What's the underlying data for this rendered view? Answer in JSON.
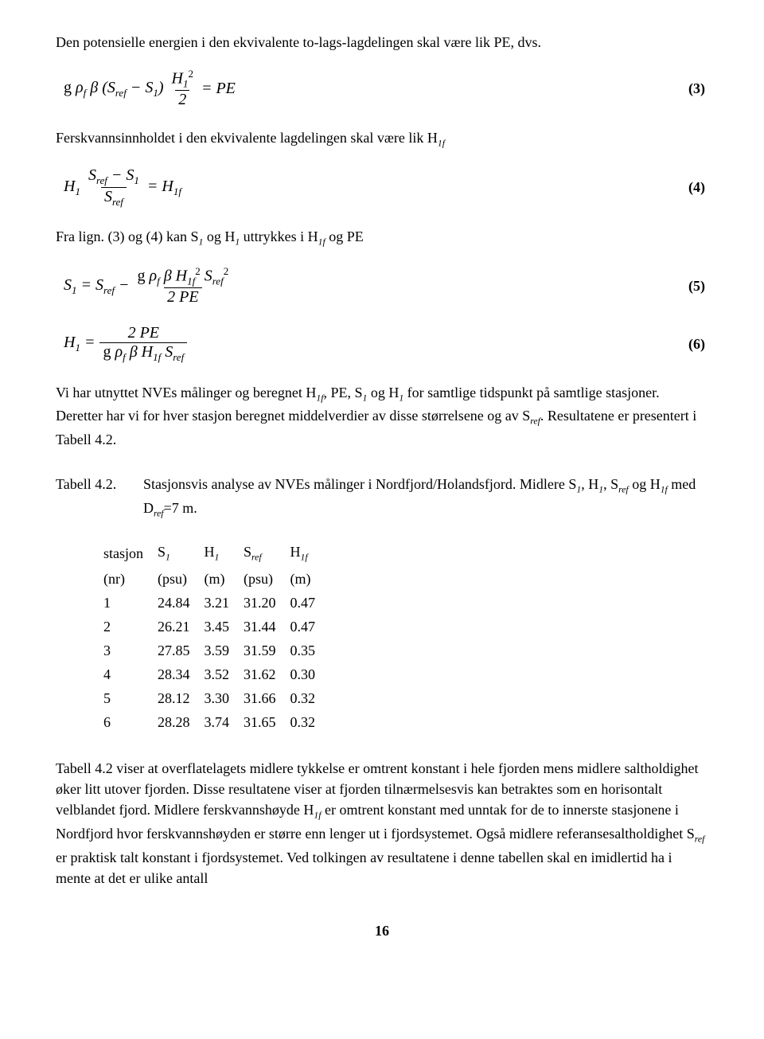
{
  "p1": "Den potensielle energien i den ekvivalente to-lags-lagdelingen skal være lik PE, dvs.",
  "eq3": {
    "lhs_pre": "g ρ",
    "lhs_sub1": "f",
    "lhs_beta": "β (S",
    "lhs_sub_ref": "ref",
    "lhs_minus": " − S",
    "lhs_sub_one": "1",
    "lhs_close": ")",
    "frac_num": "H₁²",
    "frac_den": "2",
    "eq": " = PE",
    "num": "(3)"
  },
  "p2": "Ferskvannsinnholdet i den ekvivalente lagdelingen skal være lik H",
  "p2_sub": "1f",
  "eq4": {
    "h1": "H",
    "h1_sub": "1",
    "frac_num_a": "S",
    "frac_num_a_sub": "ref",
    "frac_num_minus": " − S",
    "frac_num_b_sub": "1",
    "frac_den": "S",
    "frac_den_sub": "ref",
    "eq": " = H",
    "rhs_sub": "1f",
    "num": "(4)"
  },
  "p3_a": "Fra lign. (3) og (4) kan S",
  "p3_s1": "1",
  "p3_b": " og H",
  "p3_h1": "1",
  "p3_c": " uttrykkes i H",
  "p3_h1f": "1f",
  "p3_d": " og PE",
  "eq5": {
    "s1": "S",
    "s1_sub": "1",
    "eq1": " = S",
    "sref_sub": "ref",
    "minus": " − ",
    "frac_num": "g ρ_f β H_1f² S_ref²",
    "frac_den": "2 PE",
    "num": "(5)"
  },
  "eq6": {
    "h1": "H",
    "h1_sub": "1",
    "eq": " = ",
    "frac_num": "2 PE",
    "frac_den": "g ρ_f β H_1f S_ref",
    "num": "(6)"
  },
  "p4_a": "Vi har utnyttet NVEs målinger og beregnet H",
  "p4_sub1": "1f",
  "p4_b": ", PE, S",
  "p4_sub2": "1",
  "p4_c": " og H",
  "p4_sub3": "1",
  "p4_d": " for samtlige tidspunkt på samtlige stasjoner. Deretter har vi for hver stasjon beregnet middelverdier av disse størrelsene og av S",
  "p4_sub4": "ref",
  "p4_e": ". Resultatene er presentert i Tabell 4.2.",
  "caption_label": "Tabell 4.2.",
  "caption_a": "Stasjonsvis analyse av NVEs målinger i Nordfjord/Holandsfjord. Midlere S",
  "caption_s1": "1",
  "caption_b": ", H",
  "caption_h1": "1",
  "caption_c": ", S",
  "caption_sref": "ref",
  "caption_d": " og H",
  "caption_h1f": "1f",
  "caption_e": " med D",
  "caption_dref": "ref",
  "caption_f": "=7 m.",
  "table": {
    "headers_row1": [
      "stasjon",
      "S₁",
      "H₁",
      "S_ref",
      "H_1f"
    ],
    "headers_row2": [
      "(nr)",
      "(psu)",
      "(m)",
      "(psu)",
      "(m)"
    ],
    "rows": [
      [
        "1",
        "24.84",
        "3.21",
        "31.20",
        "0.47"
      ],
      [
        "2",
        "26.21",
        "3.45",
        "31.44",
        "0.47"
      ],
      [
        "3",
        "27.85",
        "3.59",
        "31.59",
        "0.35"
      ],
      [
        "4",
        "28.34",
        "3.52",
        "31.62",
        "0.30"
      ],
      [
        "5",
        "28.12",
        "3.30",
        "31.66",
        "0.32"
      ],
      [
        "6",
        "28.28",
        "3.74",
        "31.65",
        "0.32"
      ]
    ]
  },
  "p5_a": "Tabell 4.2 viser at overflatelagets midlere tykkelse er omtrent konstant i hele fjorden mens midlere saltholdighet øker litt utover fjorden. Disse resultatene viser at fjorden tilnærmelsesvis kan betraktes som en horisontalt velblandet fjord. Midlere ferskvannshøyde H",
  "p5_sub1": "1f",
  "p5_b": " er omtrent konstant med unntak for de to innerste stasjonene i Nordfjord hvor ferskvannshøyden er større enn lenger ut i fjordsystemet. Også midlere referansesaltholdighet S",
  "p5_sub2": "ref",
  "p5_c": " er praktisk talt konstant i fjordsystemet. Ved tolkingen av resultatene i denne tabellen skal en imidlertid ha i mente at det er ulike antall",
  "page_number": "16"
}
